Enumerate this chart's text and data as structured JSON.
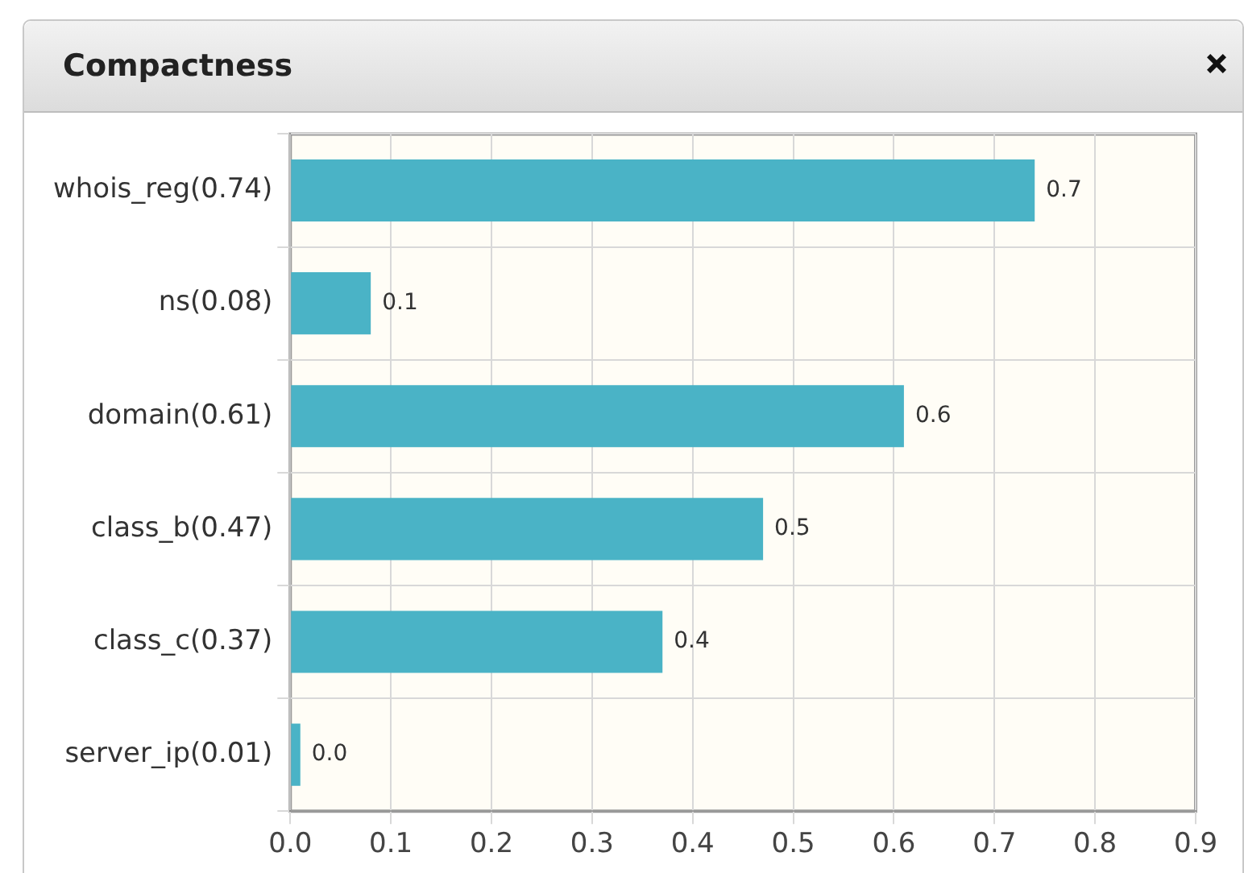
{
  "chart_data": {
    "type": "bar",
    "title": "Compactness",
    "orientation": "horizontal",
    "categories": [
      "whois_reg(0.74)",
      "ns(0.08)",
      "domain(0.61)",
      "class_b(0.47)",
      "class_c(0.37)",
      "server_ip(0.01)"
    ],
    "values": [
      0.74,
      0.08,
      0.61,
      0.47,
      0.37,
      0.01
    ],
    "value_labels": [
      "0.7",
      "0.1",
      "0.6",
      "0.5",
      "0.4",
      "0.0"
    ],
    "color": "#4ab3c6",
    "xlim": [
      0,
      0.9
    ],
    "xticks": [
      {
        "value": 0,
        "label": "0.0"
      },
      0.1,
      0.2,
      0.3,
      0.4,
      0.5,
      0.6,
      0.7,
      0.8,
      0.9
    ],
    "grid": true,
    "legend": false
  }
}
